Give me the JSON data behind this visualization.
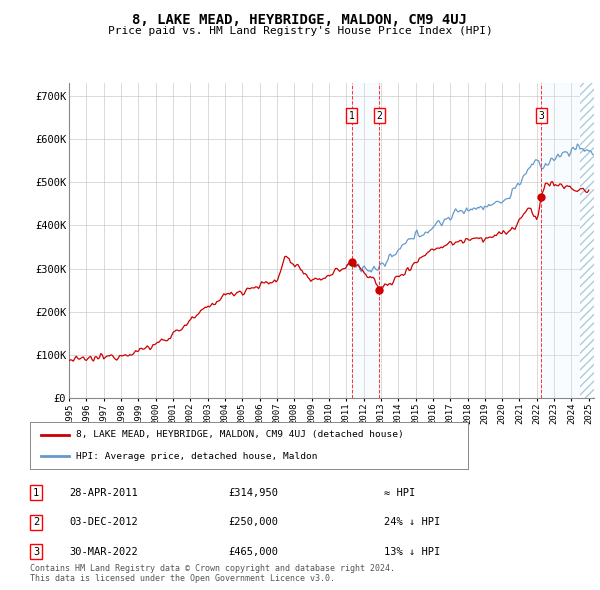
{
  "title": "8, LAKE MEAD, HEYBRIDGE, MALDON, CM9 4UJ",
  "subtitle": "Price paid vs. HM Land Registry's House Price Index (HPI)",
  "ylabel_ticks": [
    "£0",
    "£100K",
    "£200K",
    "£300K",
    "£400K",
    "£500K",
    "£600K",
    "£700K"
  ],
  "ytick_values": [
    0,
    100000,
    200000,
    300000,
    400000,
    500000,
    600000,
    700000
  ],
  "ylim": [
    0,
    730000
  ],
  "xlim_start": 1995.0,
  "xlim_end": 2025.3,
  "sale_dates": [
    2011.32,
    2012.92,
    2022.25
  ],
  "sale_prices": [
    314950,
    250000,
    465000
  ],
  "sale_labels": [
    "1",
    "2",
    "3"
  ],
  "hpi_start_year": 2011.0,
  "transaction_info": [
    {
      "label": "1",
      "date": "28-APR-2011",
      "price": "£314,950",
      "vs_hpi": "≈ HPI"
    },
    {
      "label": "2",
      "date": "03-DEC-2012",
      "price": "£250,000",
      "vs_hpi": "24% ↓ HPI"
    },
    {
      "label": "3",
      "date": "30-MAR-2022",
      "price": "£465,000",
      "vs_hpi": "13% ↓ HPI"
    }
  ],
  "legend_line1": "8, LAKE MEAD, HEYBRIDGE, MALDON, CM9 4UJ (detached house)",
  "legend_line2": "HPI: Average price, detached house, Maldon",
  "legend_color1": "#cc0000",
  "legend_color2": "#6699cc",
  "footer": "Contains HM Land Registry data © Crown copyright and database right 2024.\nThis data is licensed under the Open Government Licence v3.0.",
  "bg_color": "#ffffff",
  "grid_color": "#cccccc",
  "hpi_line_color": "#6699cc",
  "sale_line_color": "#cc0000",
  "shade_color": "#ddeeff"
}
